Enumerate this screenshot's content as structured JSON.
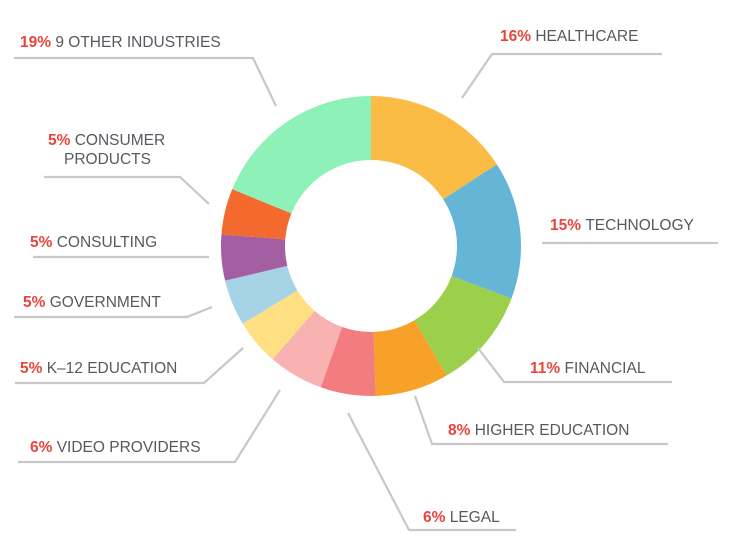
{
  "chart_data": {
    "type": "donut",
    "slices": [
      {
        "percent_label": "16%",
        "name_lines": [
          "HEALTHCARE"
        ],
        "value": 16,
        "color": "#fbbc45"
      },
      {
        "percent_label": "15%",
        "name_lines": [
          "TECHNOLOGY"
        ],
        "value": 15,
        "color": "#64b5d6"
      },
      {
        "percent_label": "11%",
        "name_lines": [
          "FINANCIAL"
        ],
        "value": 11,
        "color": "#9ccf4b"
      },
      {
        "percent_label": "8%",
        "name_lines": [
          "HIGHER EDUCATION"
        ],
        "value": 8,
        "color": "#f7a128"
      },
      {
        "percent_label": "6%",
        "name_lines": [
          "LEGAL"
        ],
        "value": 6,
        "color": "#f37d7e"
      },
      {
        "percent_label": "6%",
        "name_lines": [
          "VIDEO PROVIDERS"
        ],
        "value": 6,
        "color": "#f8b2b1"
      },
      {
        "percent_label": "5%",
        "name_lines": [
          "K–12 EDUCATION"
        ],
        "value": 5,
        "color": "#fedf82"
      },
      {
        "percent_label": "5%",
        "name_lines": [
          "GOVERNMENT"
        ],
        "value": 5,
        "color": "#a7d3e7"
      },
      {
        "percent_label": "5%",
        "name_lines": [
          "CONSULTING"
        ],
        "value": 5,
        "color": "#a45fa3"
      },
      {
        "percent_label": "5%",
        "name_lines": [
          "CONSUMER",
          "PRODUCTS"
        ],
        "value": 5,
        "color": "#f4692d"
      },
      {
        "percent_label": "19%",
        "name_lines": [
          "9 OTHER INDUSTRIES"
        ],
        "value": 19,
        "color": "#8ef1b8"
      }
    ],
    "colors": {
      "percent_text": "#e8453c",
      "label_text": "#555a60",
      "leader_line": "#c8c8c8"
    }
  }
}
